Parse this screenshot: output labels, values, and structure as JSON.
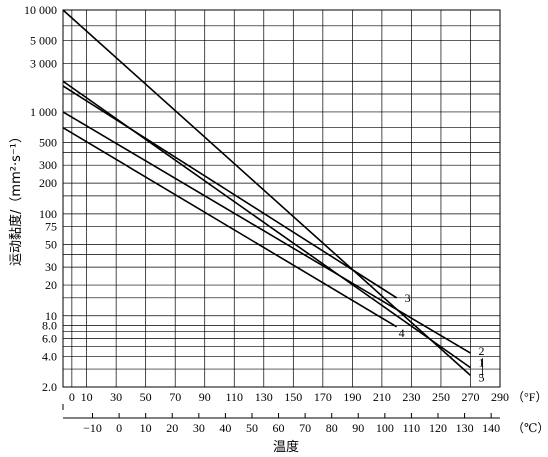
{
  "chart_data": {
    "type": "line",
    "xlabel": "温度",
    "ylabel": "运动黏度/（mm²·s⁻¹）",
    "y_scale": "log",
    "x_unit_f": "（°F）",
    "x_unit_c": "（℃）",
    "xlim_f": [
      -6,
      290
    ],
    "ylim": [
      2,
      10000
    ],
    "grid": true,
    "x_ticks_f": [
      {
        "value": 0,
        "label": "0"
      },
      {
        "value": 10,
        "label": "10"
      },
      {
        "value": 30,
        "label": "30"
      },
      {
        "value": 50,
        "label": "50"
      },
      {
        "value": 70,
        "label": "70"
      },
      {
        "value": 90,
        "label": "90"
      },
      {
        "value": 110,
        "label": "110"
      },
      {
        "value": 130,
        "label": "130"
      },
      {
        "value": 150,
        "label": "150"
      },
      {
        "value": 170,
        "label": "170"
      },
      {
        "value": 190,
        "label": "190"
      },
      {
        "value": 210,
        "label": "210"
      },
      {
        "value": 230,
        "label": "230"
      },
      {
        "value": 250,
        "label": "250"
      },
      {
        "value": 270,
        "label": "270"
      },
      {
        "value": 290,
        "label": "290"
      }
    ],
    "x_ticks_c": [
      {
        "value": -10,
        "label": "−10"
      },
      {
        "value": 0,
        "label": "0"
      },
      {
        "value": 10,
        "label": "10"
      },
      {
        "value": 20,
        "label": "20"
      },
      {
        "value": 30,
        "label": "30"
      },
      {
        "value": 40,
        "label": "40"
      },
      {
        "value": 50,
        "label": "50"
      },
      {
        "value": 60,
        "label": "60"
      },
      {
        "value": 70,
        "label": "70"
      },
      {
        "value": 80,
        "label": "80"
      },
      {
        "value": 90,
        "label": "90"
      },
      {
        "value": 100,
        "label": "100"
      },
      {
        "value": 110,
        "label": "110"
      },
      {
        "value": 120,
        "label": "120"
      },
      {
        "value": 130,
        "label": "130"
      },
      {
        "value": 140,
        "label": "140"
      }
    ],
    "y_ticks": [
      {
        "value": 10000,
        "label": "10 000"
      },
      {
        "value": 5000,
        "label": "5 000"
      },
      {
        "value": 3000,
        "label": "3 000"
      },
      {
        "value": 1000,
        "label": "1 000"
      },
      {
        "value": 500,
        "label": "500"
      },
      {
        "value": 300,
        "label": "300"
      },
      {
        "value": 200,
        "label": "200"
      },
      {
        "value": 100,
        "label": "100"
      },
      {
        "value": 75,
        "label": "75"
      },
      {
        "value": 50,
        "label": "50"
      },
      {
        "value": 30,
        "label": "30"
      },
      {
        "value": 20,
        "label": "20"
      },
      {
        "value": 10,
        "label": "10"
      },
      {
        "value": 8,
        "label": "8.0"
      },
      {
        "value": 6,
        "label": "6.0"
      },
      {
        "value": 4,
        "label": "4.0"
      },
      {
        "value": 2,
        "label": "2.0"
      }
    ],
    "y_extra_gridlines": [
      7000,
      2000,
      1500,
      700,
      400,
      150,
      40,
      15,
      7,
      5,
      3
    ],
    "series": [
      {
        "name": "1",
        "points": [
          [
            -6,
            2000
          ],
          [
            270,
            3.1
          ]
        ]
      },
      {
        "name": "2",
        "points": [
          [
            -6,
            1000
          ],
          [
            270,
            4.3
          ]
        ]
      },
      {
        "name": "3",
        "points": [
          [
            -6,
            1800
          ],
          [
            220,
            15
          ]
        ]
      },
      {
        "name": "4",
        "points": [
          [
            -6,
            700
          ],
          [
            220,
            7.8
          ]
        ]
      },
      {
        "name": "5",
        "points": [
          [
            -6,
            10000
          ],
          [
            270,
            2.6
          ]
        ]
      }
    ]
  }
}
